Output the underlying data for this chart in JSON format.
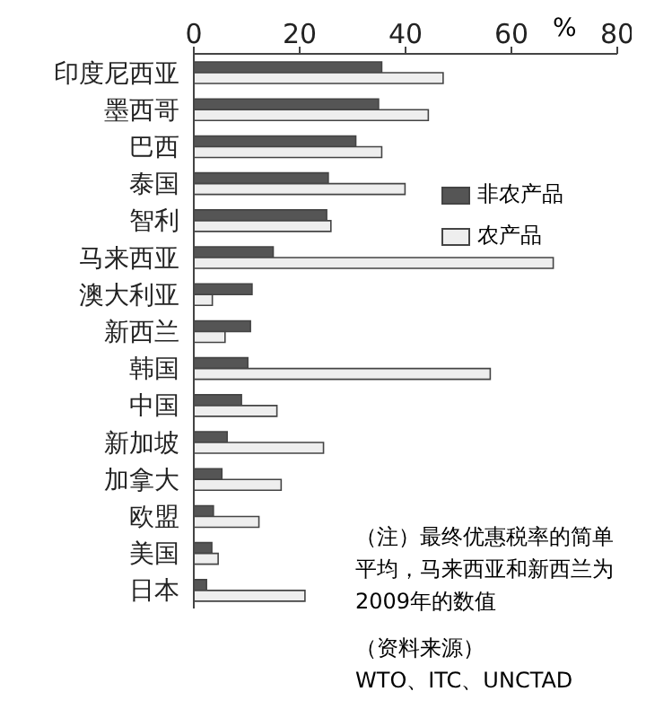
{
  "chart_data": {
    "type": "bar",
    "orientation": "horizontal",
    "xlabel": "%",
    "categories": [
      "印度尼西亚",
      "墨西哥",
      "巴西",
      "泰国",
      "智利",
      "马来西亚",
      "澳大利亚",
      "新西兰",
      "韩国",
      "中国",
      "新加坡",
      "加拿大",
      "欧盟",
      "美国",
      "日本"
    ],
    "series": [
      {
        "name": "非农产品",
        "color": "#555555",
        "values": [
          35.5,
          34.9,
          30.6,
          25.4,
          25.1,
          15.0,
          11.0,
          10.7,
          10.2,
          9.0,
          6.3,
          5.3,
          3.7,
          3.4,
          2.4
        ]
      },
      {
        "name": "农产品",
        "color": "#eeeeee",
        "values": [
          47.1,
          44.3,
          35.5,
          39.9,
          25.9,
          67.9,
          3.5,
          5.9,
          56.0,
          15.7,
          24.5,
          16.5,
          12.3,
          4.6,
          21.0
        ]
      }
    ],
    "xlim": [
      0,
      80
    ],
    "xticks": [
      0,
      20,
      40,
      60,
      80
    ],
    "grid": false,
    "legend": "right",
    "annotations": [
      "（注）最终优惠税率的简单平均，马来西亚和新西兰为2009年的数值",
      "（资料来源）",
      "WTO、ITC、UNCTAD"
    ]
  }
}
